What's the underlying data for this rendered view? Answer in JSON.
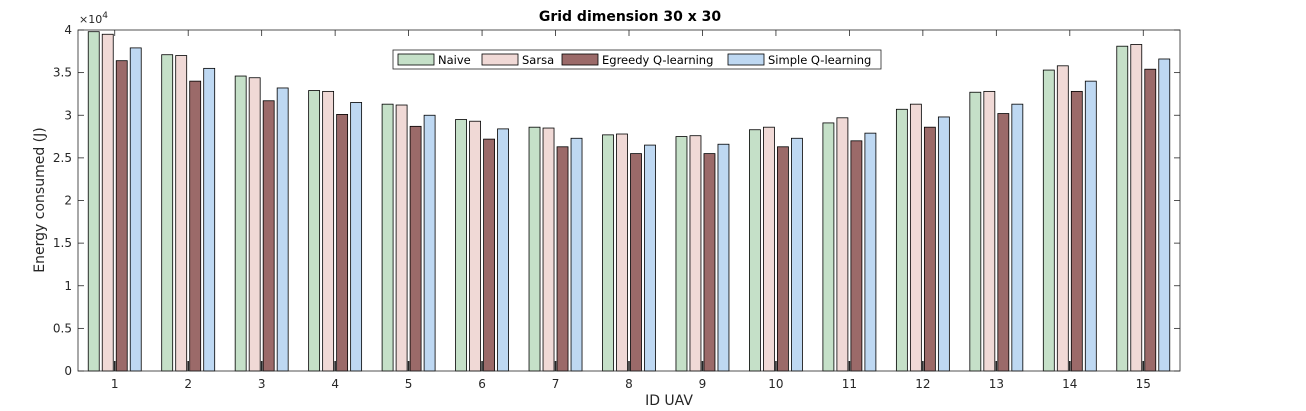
{
  "chart_data": {
    "type": "bar",
    "title": "Grid dimension 30 x 30",
    "xlabel": "ID UAV",
    "ylabel": "Energy consumed (J)",
    "y_exponent_label": "×10",
    "y_exponent_power": "4",
    "ylim": [
      0,
      40000
    ],
    "yticks": [
      0,
      5000,
      10000,
      15000,
      20000,
      25000,
      30000,
      35000,
      40000
    ],
    "ytick_labels": [
      "0",
      "0.5",
      "1",
      "1.5",
      "2",
      "2.5",
      "3",
      "3.5",
      "4"
    ],
    "categories": [
      "1",
      "2",
      "3",
      "4",
      "5",
      "6",
      "7",
      "8",
      "9",
      "10",
      "11",
      "12",
      "13",
      "14",
      "15"
    ],
    "legend_position": "top-center",
    "grid": false,
    "series": [
      {
        "name": "Naive",
        "color": "#c5e0c8",
        "values": [
          39800,
          37100,
          34600,
          32900,
          31300,
          29500,
          28600,
          27700,
          27500,
          28300,
          29100,
          30700,
          32700,
          35300,
          38100
        ]
      },
      {
        "name": "Sarsa",
        "color": "#f0d9d6",
        "values": [
          39500,
          37000,
          34400,
          32800,
          31200,
          29300,
          28500,
          27800,
          27600,
          28600,
          29700,
          31300,
          32800,
          35800,
          38300
        ]
      },
      {
        "name": "Egreedy Q-learning",
        "color": "#9b6a69",
        "values": [
          36400,
          34000,
          31700,
          30100,
          28700,
          27200,
          26300,
          25500,
          25500,
          26300,
          27000,
          28600,
          30200,
          32800,
          35400
        ]
      },
      {
        "name": "Simple Q-learning",
        "color": "#bed8f2",
        "values": [
          37900,
          35500,
          33200,
          31500,
          30000,
          28400,
          27300,
          26500,
          26600,
          27300,
          27900,
          29800,
          31300,
          34000,
          36600
        ]
      }
    ]
  }
}
